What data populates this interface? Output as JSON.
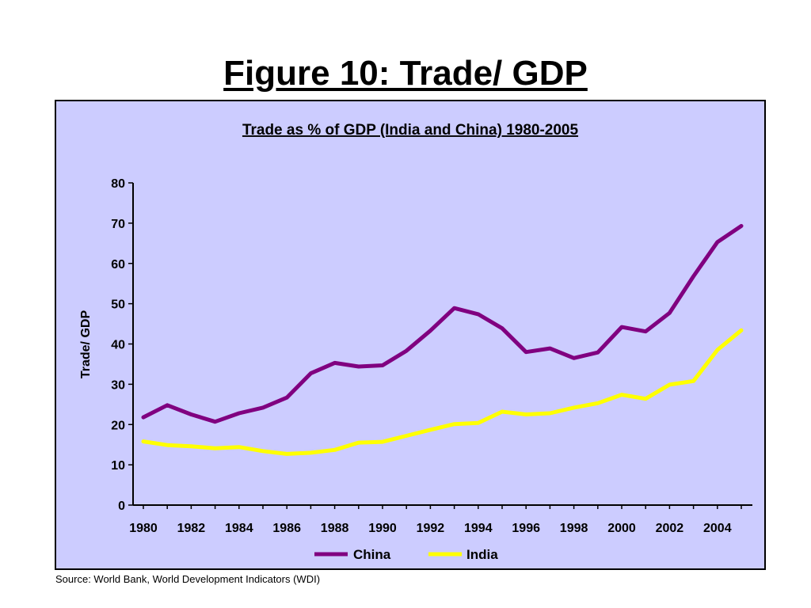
{
  "page": {
    "title": "Figure 10: Trade/ GDP",
    "source": "Source: World Bank, World Development Indicators (WDI)"
  },
  "chart_data": {
    "type": "line",
    "title": "Trade as % of GDP (India and China) 1980-2005",
    "xlabel": "",
    "ylabel": "Trade/ GDP",
    "x": [
      1980,
      1981,
      1982,
      1983,
      1984,
      1985,
      1986,
      1987,
      1988,
      1989,
      1990,
      1991,
      1992,
      1993,
      1994,
      1995,
      1996,
      1997,
      1998,
      1999,
      2000,
      2001,
      2002,
      2003,
      2004,
      2005
    ],
    "x_tick_labels": [
      "1980",
      "1982",
      "1984",
      "1986",
      "1988",
      "1990",
      "1992",
      "1994",
      "1996",
      "1998",
      "2000",
      "2002",
      "2004"
    ],
    "ylim": [
      0,
      80
    ],
    "y_ticks": [
      0,
      10,
      20,
      30,
      40,
      50,
      60,
      70,
      80
    ],
    "grid": false,
    "legend_position": "bottom",
    "background_color": "#ccccff",
    "series": [
      {
        "name": "China",
        "color": "#800080",
        "values": [
          21.8,
          24.8,
          22.5,
          20.7,
          22.8,
          24.2,
          26.7,
          32.7,
          35.3,
          34.4,
          34.7,
          38.3,
          43.3,
          48.9,
          47.4,
          43.9,
          38.0,
          38.9,
          36.5,
          37.9,
          44.2,
          43.1,
          47.7,
          56.8,
          65.3,
          69.3
        ]
      },
      {
        "name": "India",
        "color": "#ffff00",
        "values": [
          15.8,
          14.9,
          14.6,
          14.1,
          14.4,
          13.4,
          12.7,
          13.0,
          13.7,
          15.5,
          15.7,
          17.2,
          18.7,
          20.1,
          20.4,
          23.2,
          22.5,
          22.8,
          24.2,
          25.3,
          27.4,
          26.4,
          29.9,
          30.8,
          38.5,
          43.4
        ]
      }
    ]
  }
}
